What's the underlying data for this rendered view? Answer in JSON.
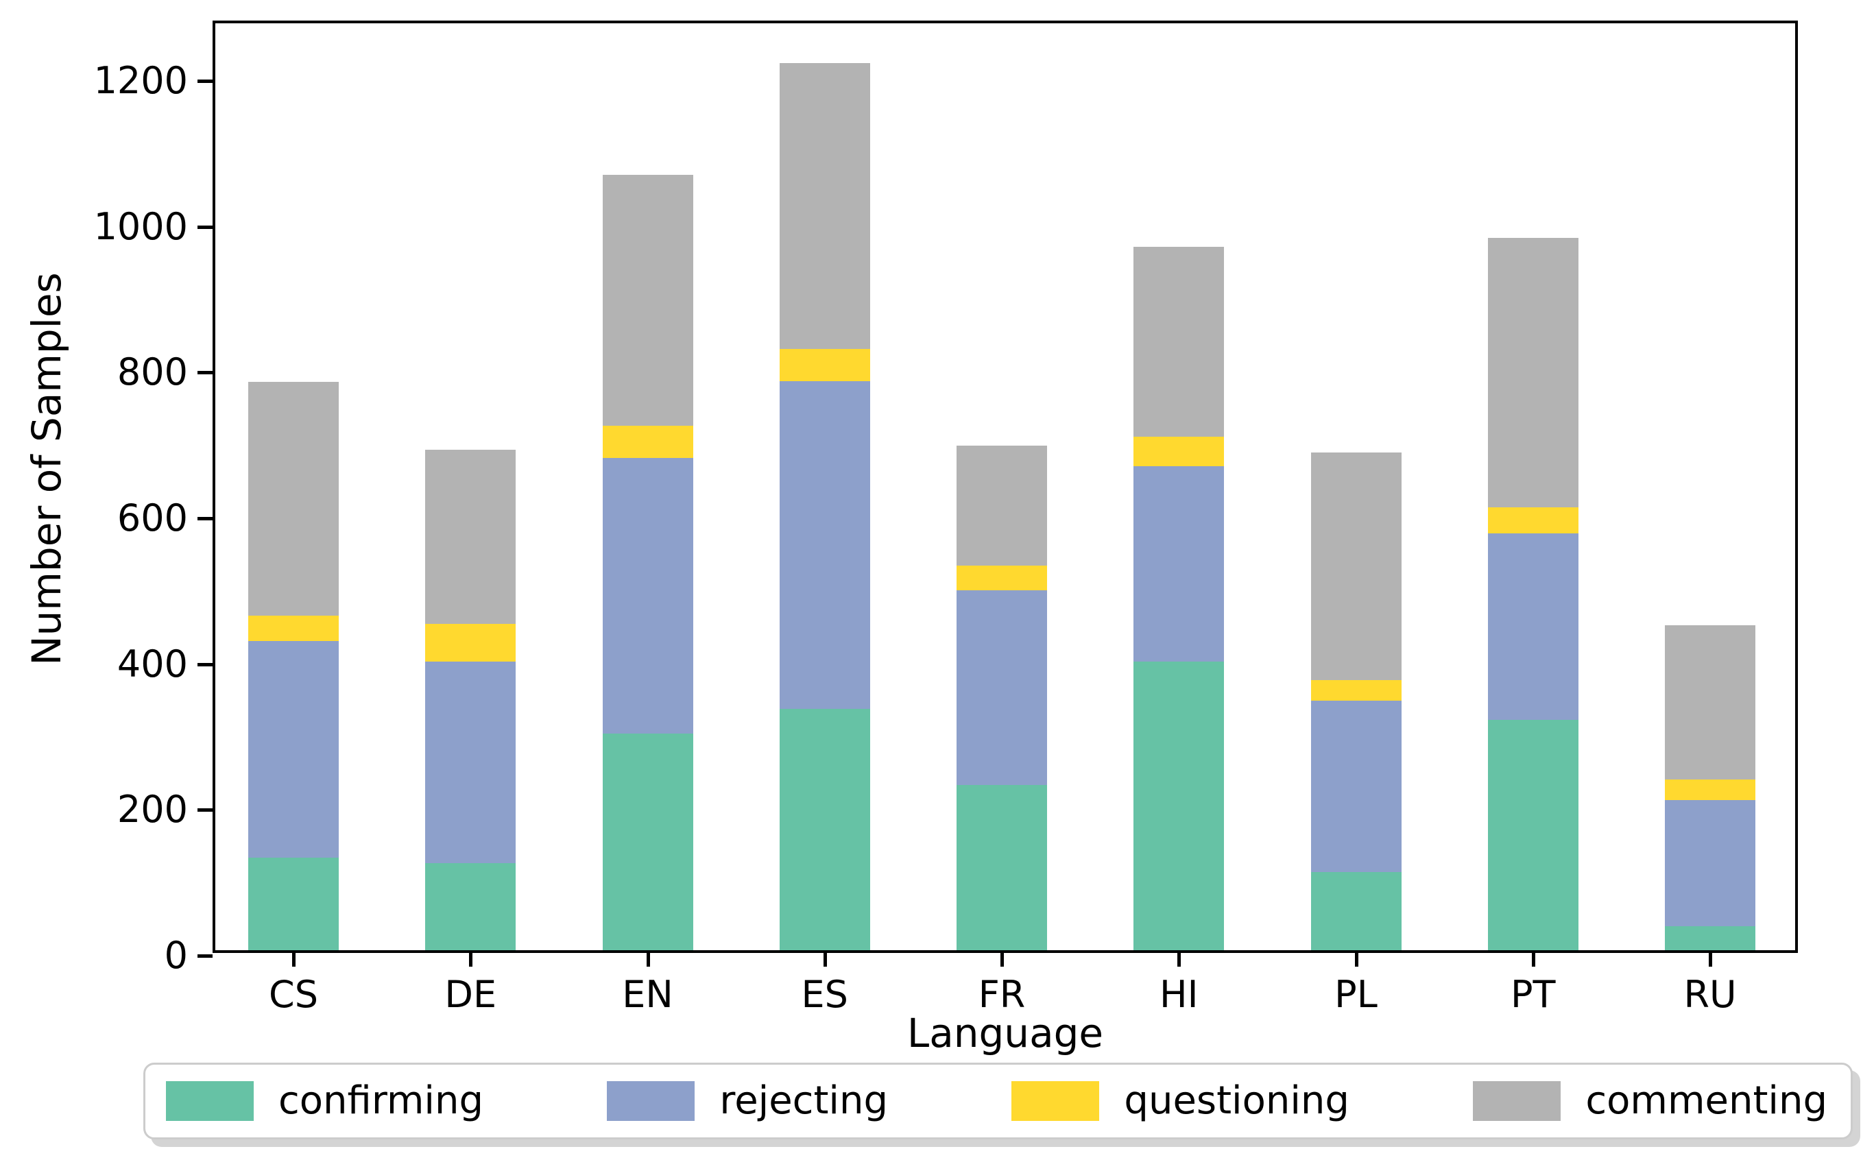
{
  "chart_data": {
    "type": "bar",
    "stacked": true,
    "title": "",
    "xlabel": "Language",
    "ylabel": "Number of Samples",
    "categories": [
      "CS",
      "DE",
      "EN",
      "ES",
      "FR",
      "HI",
      "PL",
      "PT",
      "RU"
    ],
    "series": [
      {
        "name": "confirming",
        "color": "#66c2a5",
        "values": [
          127,
          119,
          297,
          331,
          227,
          396,
          107,
          316,
          33
        ]
      },
      {
        "name": "rejecting",
        "color": "#8da0cb",
        "values": [
          297,
          277,
          378,
          450,
          267,
          268,
          235,
          256,
          173
        ]
      },
      {
        "name": "questioning",
        "color": "#ffd92f",
        "values": [
          35,
          52,
          44,
          44,
          34,
          40,
          29,
          36,
          28
        ]
      },
      {
        "name": "commenting",
        "color": "#b3b3b3",
        "values": [
          321,
          239,
          345,
          392,
          164,
          261,
          312,
          369,
          212
        ]
      }
    ],
    "totals": [
      780,
      687,
      1064,
      1217,
      692,
      965,
      683,
      977,
      446
    ],
    "y_ticks": [
      0,
      200,
      400,
      600,
      800,
      1000,
      1200
    ],
    "ylim": [
      0,
      1279
    ],
    "grid": false,
    "legend_position": "bottom",
    "legend_entries": [
      "confirming",
      "rejecting",
      "questioning",
      "commenting"
    ]
  },
  "axis_colors": {
    "spine": "#000000",
    "text": "#000000"
  }
}
